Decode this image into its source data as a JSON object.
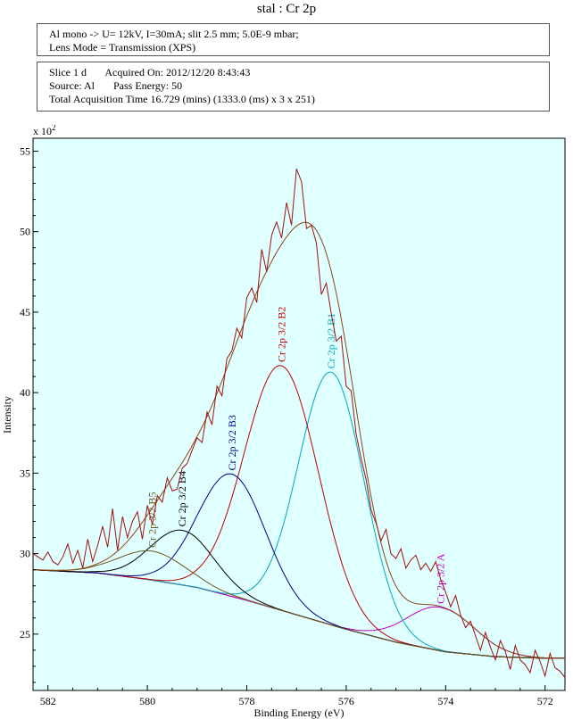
{
  "page": {
    "title": "stal : Cr 2p"
  },
  "info": {
    "line1": "Al mono -> U= 12kV, I=30mA; slit 2.5 mm; 5.0E-9 mbar;",
    "line2": "Lens Mode = Transmission (XPS)",
    "slice": "Slice 1 d       Acquired On: 2012/12/20 8:43:43",
    "source": "Source: Al       Pass Energy: 50",
    "total": "Total Acquisition Time 16.729 (mins) (1333.0 (ms) x 3 x 251)"
  },
  "colors": {
    "background": "#e0ffff",
    "spectrum": "#a01010",
    "envelope": "#8b4513",
    "background_line": "#7a1a1a"
  },
  "chart_data": {
    "type": "line",
    "xlabel": "Binding Energy (eV)",
    "ylabel": "Intensity",
    "y_multiplier": "x 10^2",
    "xlim": [
      582.3,
      571.6
    ],
    "ylim": [
      21.5,
      55.8
    ],
    "x_reversed": true,
    "xticks": [
      582,
      580,
      578,
      576,
      574,
      572
    ],
    "yticks": [
      25,
      30,
      35,
      40,
      45,
      50,
      55
    ],
    "grid": false,
    "background_line": {
      "x": [
        582.3,
        581,
        580,
        579,
        578,
        577,
        576,
        575,
        574,
        573,
        572,
        571.6
      ],
      "y": [
        29.0,
        28.8,
        28.4,
        27.9,
        27.1,
        26.2,
        25.3,
        24.5,
        23.9,
        23.6,
        23.5,
        23.5
      ]
    },
    "components": [
      {
        "name": "Cr 2p 3/2 A",
        "center": 574.1,
        "height": 2.7,
        "fwhm": 1.6,
        "color": "#c000c0"
      },
      {
        "name": "Cr 2p 3/2 B1",
        "center": 576.3,
        "height": 15.7,
        "fwhm": 1.55,
        "color": "#00a8b8"
      },
      {
        "name": "Cr 2p 3/2 B2",
        "center": 577.3,
        "height": 15.2,
        "fwhm": 1.75,
        "color": "#c00000"
      },
      {
        "name": "Cr 2p 3/2 B3",
        "center": 578.3,
        "height": 7.6,
        "fwhm": 1.6,
        "color": "#00008b"
      },
      {
        "name": "Cr 2p 3/2 B4",
        "center": 579.3,
        "height": 3.4,
        "fwhm": 1.5,
        "color": "#000000"
      },
      {
        "name": "Cr 2p 3/2 B5",
        "center": 579.9,
        "height": 1.8,
        "fwhm": 1.6,
        "color": "#6b5a1e"
      }
    ],
    "spectrum": {
      "x": [
        582.3,
        582.1,
        582.0,
        581.9,
        581.8,
        581.7,
        581.6,
        581.5,
        581.4,
        581.3,
        581.2,
        581.1,
        581.0,
        580.9,
        580.8,
        580.7,
        580.6,
        580.5,
        580.4,
        580.3,
        580.2,
        580.1,
        580.0,
        579.9,
        579.8,
        579.7,
        579.6,
        579.5,
        579.4,
        579.3,
        579.2,
        579.1,
        579.0,
        578.9,
        578.8,
        578.7,
        578.6,
        578.5,
        578.4,
        578.3,
        578.2,
        578.1,
        578.0,
        577.9,
        577.8,
        577.7,
        577.6,
        577.5,
        577.4,
        577.3,
        577.2,
        577.1,
        577.0,
        576.9,
        576.8,
        576.7,
        576.6,
        576.5,
        576.4,
        576.3,
        576.2,
        576.1,
        576.0,
        575.9,
        575.8,
        575.7,
        575.6,
        575.5,
        575.4,
        575.3,
        575.2,
        575.1,
        575.0,
        574.9,
        574.8,
        574.7,
        574.6,
        574.5,
        574.4,
        574.3,
        574.2,
        574.1,
        574.0,
        573.9,
        573.8,
        573.7,
        573.6,
        573.5,
        573.4,
        573.3,
        573.2,
        573.1,
        573.0,
        572.9,
        572.8,
        572.7,
        572.6,
        572.5,
        572.4,
        572.3,
        572.2,
        572.1,
        572.0,
        571.9,
        571.8,
        571.7,
        571.6
      ],
      "y": [
        30.0,
        29.6,
        30.1,
        29.5,
        29.3,
        29.8,
        30.6,
        29.4,
        30.2,
        29.1,
        30.9,
        29.5,
        30.5,
        31.7,
        30.4,
        32.8,
        30.2,
        32.3,
        31.0,
        32.0,
        32.6,
        30.9,
        33.0,
        31.8,
        33.6,
        33.2,
        34.7,
        33.9,
        34.0,
        35.3,
        35.6,
        36.4,
        37.2,
        36.9,
        38.8,
        38.0,
        40.4,
        39.8,
        42.1,
        42.6,
        44.0,
        43.4,
        45.9,
        46.5,
        45.6,
        48.9,
        47.5,
        49.8,
        50.6,
        49.6,
        51.8,
        50.4,
        53.9,
        53.1,
        50.2,
        50.4,
        49.3,
        46.1,
        46.8,
        44.9,
        43.2,
        43.5,
        40.4,
        40.1,
        37.4,
        35.9,
        34.6,
        32.7,
        31.9,
        30.8,
        31.5,
        30.0,
        29.7,
        30.3,
        29.1,
        29.6,
        29.9,
        29.0,
        29.4,
        28.9,
        29.5,
        28.4,
        27.6,
        26.7,
        27.4,
        26.2,
        25.4,
        25.8,
        24.9,
        24.0,
        25.1,
        24.2,
        23.4,
        24.6,
        23.9,
        22.8,
        24.3,
        23.4,
        23.1,
        22.6,
        24.0,
        23.3,
        22.4,
        23.8,
        22.9,
        22.7,
        22.3
      ]
    }
  }
}
